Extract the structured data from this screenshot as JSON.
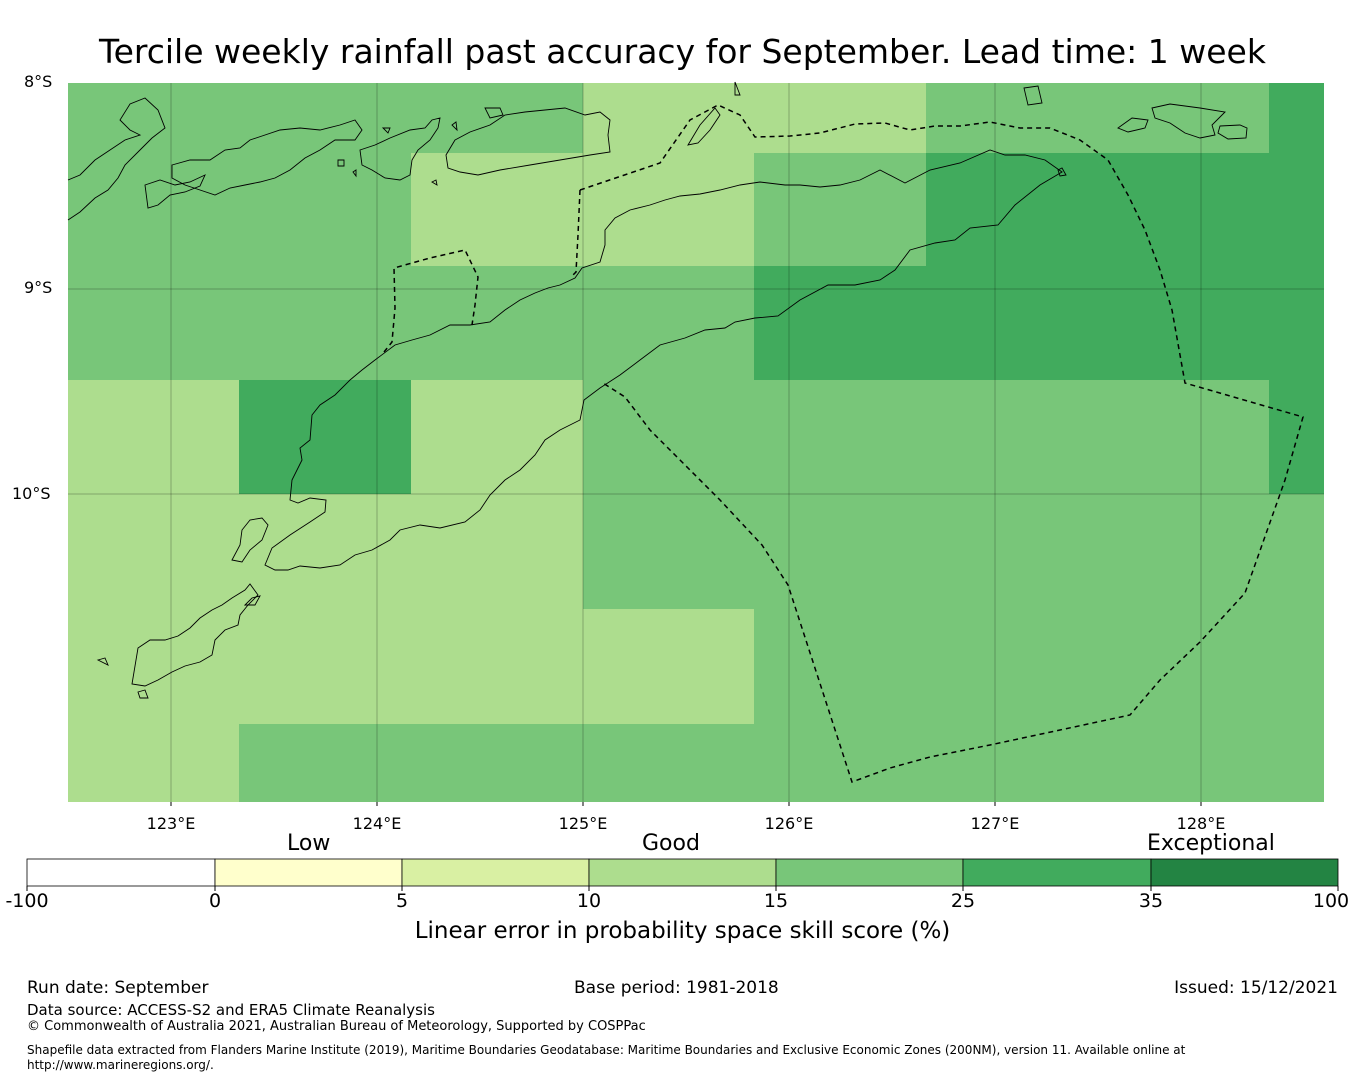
{
  "title": "Tercile weekly rainfall past accuracy for September. Lead time: 1 week",
  "map": {
    "lat_labels": [
      "8°S",
      "9°S",
      "10°S"
    ],
    "lon_labels": [
      "123°E",
      "124°E",
      "125°E",
      "126°E",
      "127°E",
      "128°E"
    ],
    "extent": {
      "lon": [
        122.5,
        128.6
      ],
      "lat": [
        -8.0,
        -11.5
      ]
    },
    "grid_lines": true
  },
  "colorbar": {
    "categories": [
      "Low",
      "Good",
      "Exceptional"
    ],
    "ticks": [
      "-100",
      "0",
      "5",
      "10",
      "15",
      "25",
      "35",
      "100"
    ],
    "colors": [
      "#ffffff",
      "#ffffcc",
      "#d9f0a3",
      "#addd8e",
      "#78c679",
      "#41ab5d",
      "#238443"
    ],
    "label": "Linear error in probability space skill score (%)"
  },
  "footer": {
    "run_date": "Run date: September",
    "base_period": "Base period: 1981-2018",
    "issued": "Issued: 15/12/2021",
    "data_source": "Data source: ACCESS-S2 and ERA5 Climate Reanalysis",
    "copyright": "© Commonwealth of Australia 2021, Australian Bureau of Meteorology, Supported by COSPPac",
    "shapefile_line1": "Shapefile data extracted from Flanders Marine Institute (2019), Maritime Boundaries Geodatabase: Maritime Boundaries and Exclusive Economic Zones (200NM), version 11. Available online at",
    "shapefile_line2": "http://www.marineregions.org/."
  }
}
